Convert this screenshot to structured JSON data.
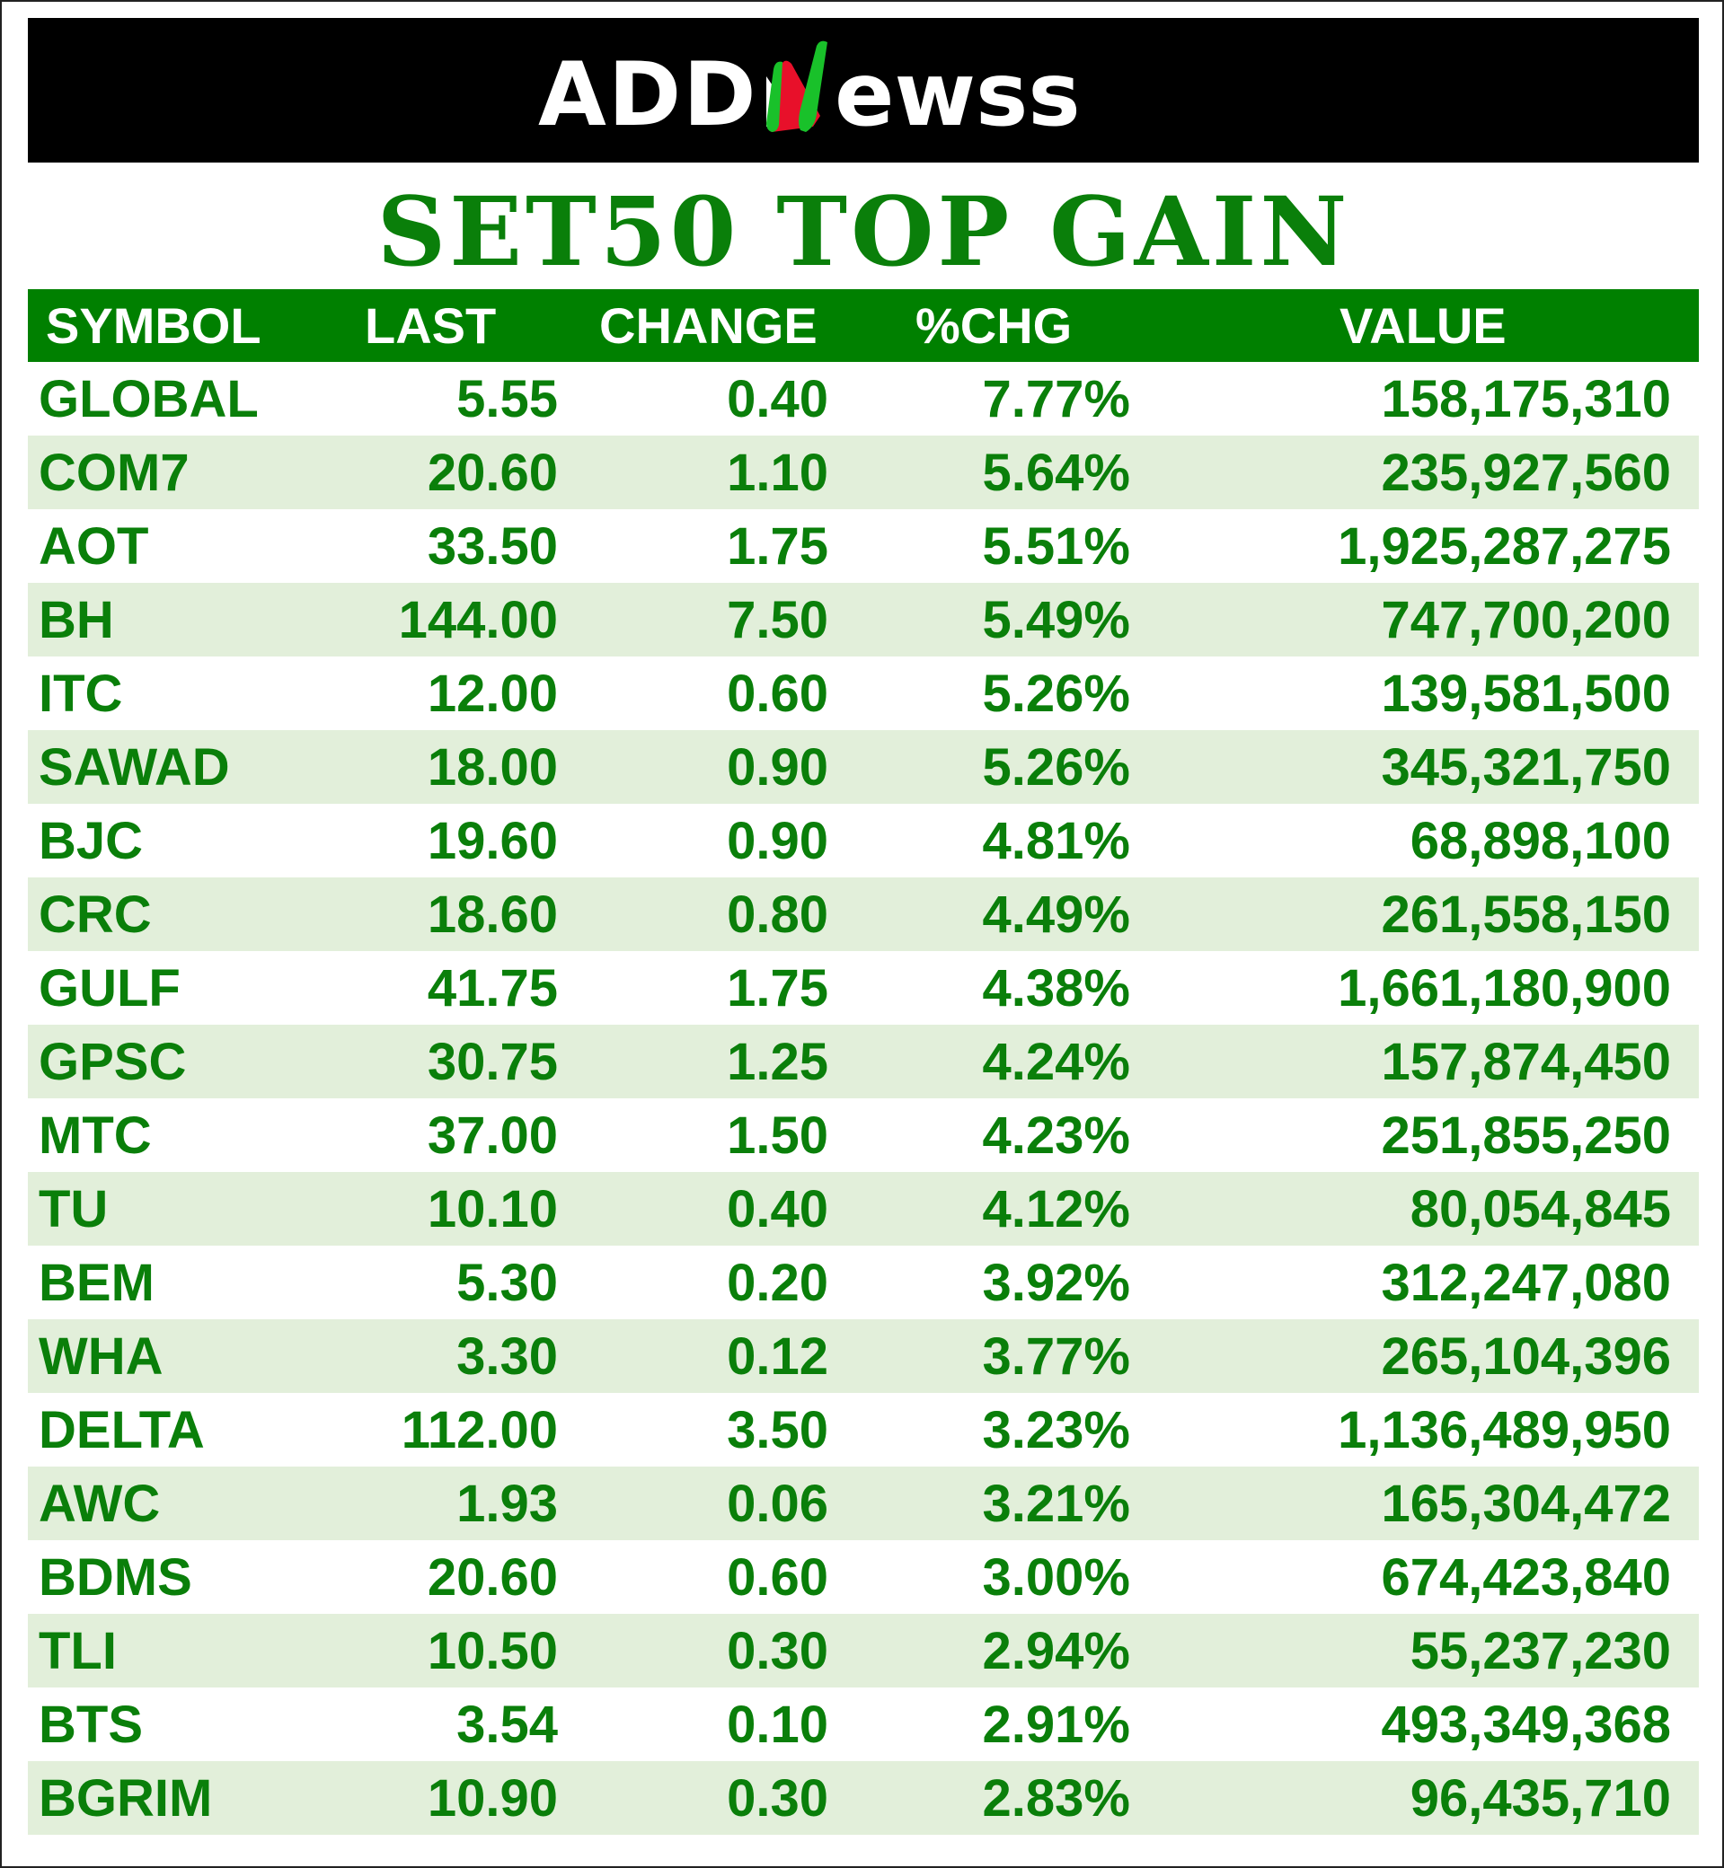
{
  "brand": {
    "logo_text": "ADDNewss",
    "colors": {
      "green": "#0a7f0a",
      "header_green": "#008000",
      "alt_row": "#e2efda",
      "logo_red": "#e8102a",
      "logo_accent_green": "#19c12a"
    }
  },
  "title": "SET50 TOP GAIN",
  "columns": [
    "SYMBOL",
    "LAST",
    "CHANGE",
    "%CHG",
    "VALUE"
  ],
  "rows": [
    {
      "symbol": "GLOBAL",
      "last": "5.55",
      "change": "0.40",
      "pct": "7.77%",
      "value": "158,175,310"
    },
    {
      "symbol": "COM7",
      "last": "20.60",
      "change": "1.10",
      "pct": "5.64%",
      "value": "235,927,560"
    },
    {
      "symbol": "AOT",
      "last": "33.50",
      "change": "1.75",
      "pct": "5.51%",
      "value": "1,925,287,275"
    },
    {
      "symbol": "BH",
      "last": "144.00",
      "change": "7.50",
      "pct": "5.49%",
      "value": "747,700,200"
    },
    {
      "symbol": "ITC",
      "last": "12.00",
      "change": "0.60",
      "pct": "5.26%",
      "value": "139,581,500"
    },
    {
      "symbol": "SAWAD",
      "last": "18.00",
      "change": "0.90",
      "pct": "5.26%",
      "value": "345,321,750"
    },
    {
      "symbol": "BJC",
      "last": "19.60",
      "change": "0.90",
      "pct": "4.81%",
      "value": "68,898,100"
    },
    {
      "symbol": "CRC",
      "last": "18.60",
      "change": "0.80",
      "pct": "4.49%",
      "value": "261,558,150"
    },
    {
      "symbol": "GULF",
      "last": "41.75",
      "change": "1.75",
      "pct": "4.38%",
      "value": "1,661,180,900"
    },
    {
      "symbol": "GPSC",
      "last": "30.75",
      "change": "1.25",
      "pct": "4.24%",
      "value": "157,874,450"
    },
    {
      "symbol": "MTC",
      "last": "37.00",
      "change": "1.50",
      "pct": "4.23%",
      "value": "251,855,250"
    },
    {
      "symbol": "TU",
      "last": "10.10",
      "change": "0.40",
      "pct": "4.12%",
      "value": "80,054,845"
    },
    {
      "symbol": "BEM",
      "last": "5.30",
      "change": "0.20",
      "pct": "3.92%",
      "value": "312,247,080"
    },
    {
      "symbol": "WHA",
      "last": "3.30",
      "change": "0.12",
      "pct": "3.77%",
      "value": "265,104,396"
    },
    {
      "symbol": "DELTA",
      "last": "112.00",
      "change": "3.50",
      "pct": "3.23%",
      "value": "1,136,489,950"
    },
    {
      "symbol": "AWC",
      "last": "1.93",
      "change": "0.06",
      "pct": "3.21%",
      "value": "165,304,472"
    },
    {
      "symbol": "BDMS",
      "last": "20.60",
      "change": "0.60",
      "pct": "3.00%",
      "value": "674,423,840"
    },
    {
      "symbol": "TLI",
      "last": "10.50",
      "change": "0.30",
      "pct": "2.94%",
      "value": "55,237,230"
    },
    {
      "symbol": "BTS",
      "last": "3.54",
      "change": "0.10",
      "pct": "2.91%",
      "value": "493,349,368"
    },
    {
      "symbol": "BGRIM",
      "last": "10.90",
      "change": "0.30",
      "pct": "2.83%",
      "value": "96,435,710"
    }
  ]
}
